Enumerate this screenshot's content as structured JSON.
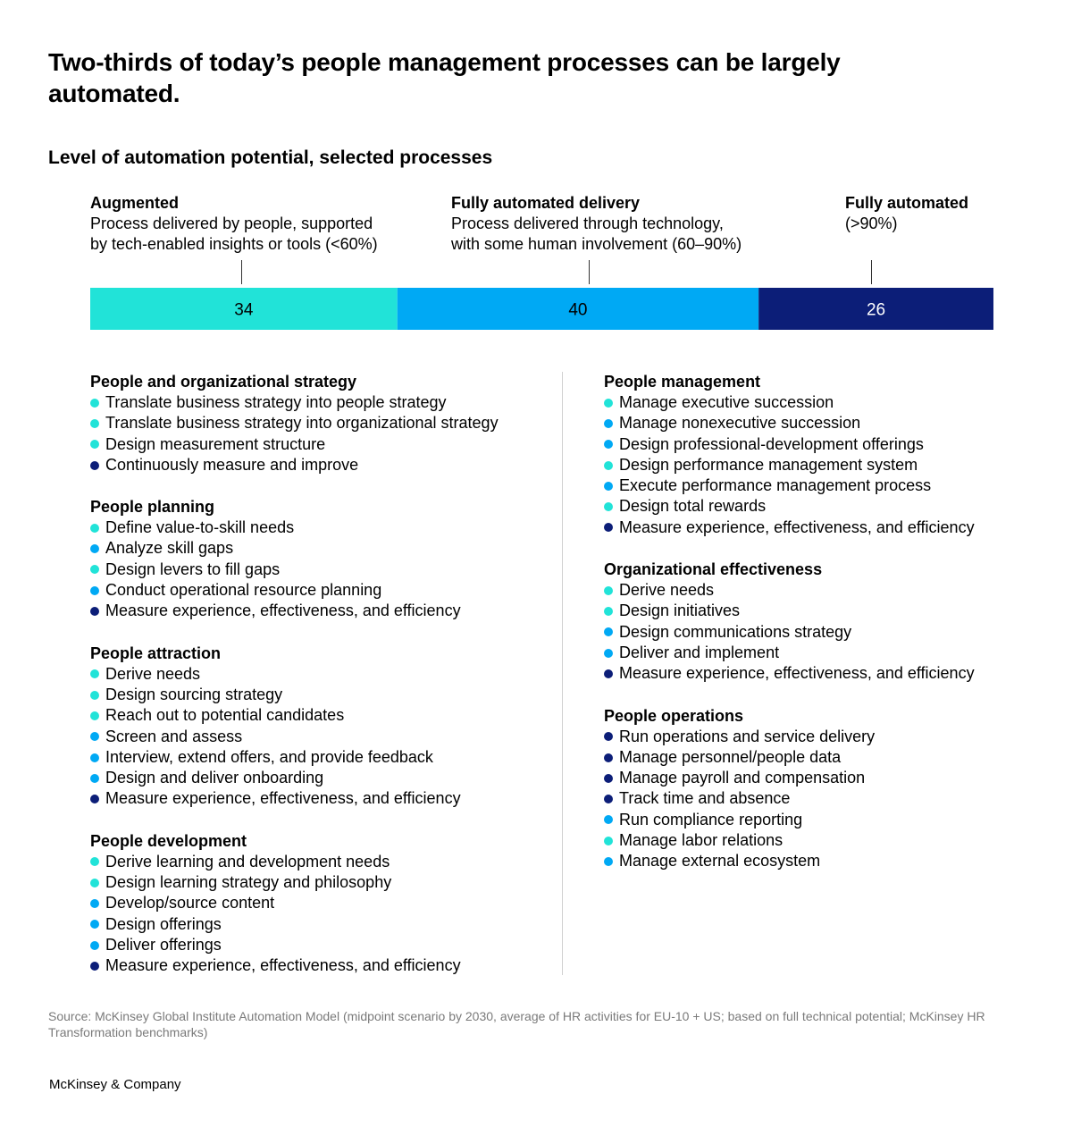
{
  "title": "Two-thirds of today’s people management processes can be largely automated.",
  "subtitle": "Level of automation potential, selected processes",
  "colors": {
    "augmented": "#21e3d8",
    "delivery": "#00a9f4",
    "full": "#0c1e78"
  },
  "chart_data": {
    "type": "bar",
    "orientation": "horizontal-stacked",
    "categories": [
      "Augmented",
      "Fully automated delivery",
      "Fully automated"
    ],
    "values": [
      34,
      40,
      26
    ],
    "colors": [
      "#21e3d8",
      "#00a9f4",
      "#0c1e78"
    ],
    "value_text_colors": [
      "#000000",
      "#000000",
      "#ffffff"
    ],
    "descriptions": [
      "Process delivered by people, supported\nby tech-enabled insights or tools (<60%)",
      "Process delivered through technology,\nwith some human involvement (60–90%)",
      "(>90%)"
    ]
  },
  "left_groups": [
    {
      "heading": "People and organizational strategy",
      "items": [
        {
          "text": "Translate business strategy into people strategy",
          "level": "augmented"
        },
        {
          "text": "Translate business strategy into organizational strategy",
          "level": "augmented"
        },
        {
          "text": "Design measurement structure",
          "level": "augmented"
        },
        {
          "text": "Continuously measure and improve",
          "level": "full"
        }
      ]
    },
    {
      "heading": "People planning",
      "items": [
        {
          "text": "Define value-to-skill needs",
          "level": "augmented"
        },
        {
          "text": "Analyze skill gaps",
          "level": "delivery"
        },
        {
          "text": "Design levers to fill gaps",
          "level": "augmented"
        },
        {
          "text": "Conduct operational resource planning",
          "level": "delivery"
        },
        {
          "text": "Measure experience, effectiveness, and efficiency",
          "level": "full"
        }
      ]
    },
    {
      "heading": "People attraction",
      "items": [
        {
          "text": "Derive needs",
          "level": "augmented"
        },
        {
          "text": "Design sourcing strategy",
          "level": "augmented"
        },
        {
          "text": "Reach out to potential candidates",
          "level": "augmented"
        },
        {
          "text": "Screen and assess",
          "level": "delivery"
        },
        {
          "text": "Interview, extend offers, and provide feedback",
          "level": "delivery"
        },
        {
          "text": "Design and deliver onboarding",
          "level": "delivery"
        },
        {
          "text": "Measure experience, effectiveness, and efficiency",
          "level": "full"
        }
      ]
    },
    {
      "heading": "People development",
      "items": [
        {
          "text": "Derive learning and development needs",
          "level": "augmented"
        },
        {
          "text": "Design learning strategy and philosophy",
          "level": "augmented"
        },
        {
          "text": "Develop/source content",
          "level": "delivery"
        },
        {
          "text": "Design offerings",
          "level": "delivery"
        },
        {
          "text": "Deliver offerings",
          "level": "delivery"
        },
        {
          "text": "Measure experience, effectiveness, and efficiency",
          "level": "full"
        }
      ]
    }
  ],
  "right_groups": [
    {
      "heading": "People management",
      "items": [
        {
          "text": "Manage executive succession",
          "level": "augmented"
        },
        {
          "text": "Manage nonexecutive succession",
          "level": "delivery"
        },
        {
          "text": "Design professional-development offerings",
          "level": "delivery"
        },
        {
          "text": "Design performance management system",
          "level": "augmented"
        },
        {
          "text": "Execute performance management process",
          "level": "delivery"
        },
        {
          "text": "Design total rewards",
          "level": "augmented"
        },
        {
          "text": "Measure experience, effectiveness, and efficiency",
          "level": "full"
        }
      ]
    },
    {
      "heading": "Organizational effectiveness",
      "items": [
        {
          "text": "Derive needs",
          "level": "augmented"
        },
        {
          "text": "Design initiatives",
          "level": "augmented"
        },
        {
          "text": "Design communications strategy",
          "level": "delivery"
        },
        {
          "text": "Deliver and implement",
          "level": "delivery"
        },
        {
          "text": "Measure experience, effectiveness, and efficiency",
          "level": "full"
        }
      ]
    },
    {
      "heading": "People operations",
      "items": [
        {
          "text": "Run operations and service delivery",
          "level": "full"
        },
        {
          "text": "Manage personnel/people data",
          "level": "full"
        },
        {
          "text": "Manage payroll and compensation",
          "level": "full"
        },
        {
          "text": "Track time and absence",
          "level": "full"
        },
        {
          "text": "Run compliance reporting",
          "level": "delivery"
        },
        {
          "text": "Manage labor relations",
          "level": "augmented"
        },
        {
          "text": "Manage external ecosystem",
          "level": "delivery"
        }
      ]
    }
  ],
  "source": "Source: McKinsey Global Institute Automation Model (midpoint scenario by 2030, average of HR activities for EU-10 + US; based on full technical potential; McKinsey HR Transformation benchmarks)",
  "brand": "McKinsey & Company"
}
